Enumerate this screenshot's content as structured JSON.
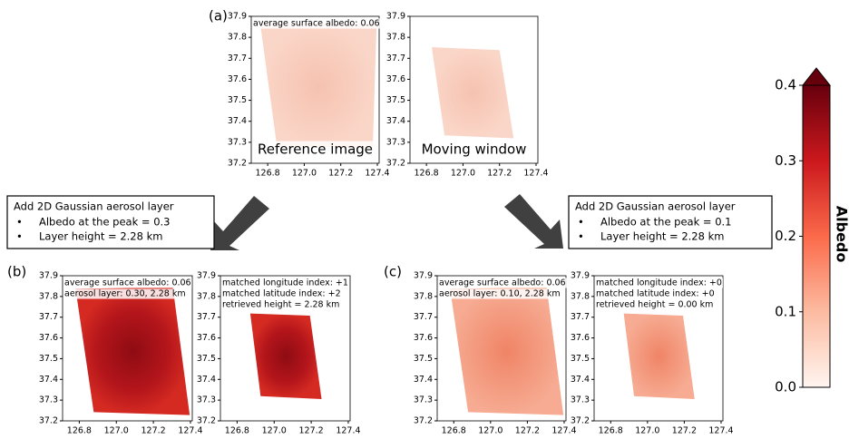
{
  "panel_labels": [
    "(a)",
    "(b)",
    "(c)"
  ],
  "axes": [
    {
      "xlim": [
        126.71,
        127.41
      ],
      "ylim": [
        37.2,
        37.9
      ],
      "xticks": [
        126.8,
        {
          "value": 127,
          "label": "127.0"
        },
        127.2,
        127.4
      ],
      "yticks": [
        37.2,
        37.3,
        37.4,
        37.5,
        37.6,
        37.7,
        37.8,
        37.9
      ],
      "annotations": [
        "average surface albedo: 0.06"
      ],
      "caption": "Reference image"
    },
    {
      "xlim": [
        126.71,
        127.41
      ],
      "ylim": [
        37.2,
        37.9
      ],
      "xticks": [
        126.8,
        {
          "value": 127,
          "label": "127.0"
        },
        127.2,
        127.4
      ],
      "yticks": [
        37.2,
        37.3,
        37.4,
        37.5,
        37.6,
        37.7,
        37.8,
        37.9
      ],
      "caption": "Moving window"
    },
    {
      "xlim": [
        126.71,
        127.41
      ],
      "ylim": [
        37.2,
        37.9
      ],
      "xticks": [
        126.8,
        {
          "value": 127,
          "label": "127.0"
        },
        127.2,
        127.4
      ],
      "yticks": [
        37.2,
        37.3,
        37.4,
        37.5,
        37.6,
        37.7,
        37.8,
        37.9
      ],
      "annotations": [
        "average surface albedo: 0.06",
        "aerosol layer: 0.30, 2.28 km"
      ]
    },
    {
      "xlim": [
        126.71,
        127.41
      ],
      "ylim": [
        37.2,
        37.9
      ],
      "xticks": [
        126.8,
        {
          "value": 127,
          "label": "127.0"
        },
        127.2,
        127.4
      ],
      "yticks": [
        37.2,
        37.3,
        37.4,
        37.5,
        37.6,
        37.7,
        37.8,
        37.9
      ],
      "annotations": [
        "matched longitude index: +1",
        "matched latitude index: +2",
        "retrieved height = 2.28 km"
      ]
    },
    {
      "xlim": [
        126.71,
        127.41
      ],
      "ylim": [
        37.2,
        37.9
      ],
      "xticks": [
        126.8,
        {
          "value": 127,
          "label": "127.0"
        },
        127.2,
        127.4
      ],
      "yticks": [
        37.2,
        37.3,
        37.4,
        37.5,
        37.6,
        37.7,
        37.8,
        37.9
      ],
      "annotations": [
        "average surface albedo: 0.06",
        "aerosol layer: 0.10, 2.28 km"
      ]
    },
    {
      "xlim": [
        126.71,
        127.41
      ],
      "ylim": [
        37.2,
        37.9
      ],
      "xticks": [
        126.8,
        {
          "value": 127,
          "label": "127.0"
        },
        127.2,
        127.4
      ],
      "yticks": [
        37.2,
        37.3,
        37.4,
        37.5,
        37.6,
        37.7,
        37.8,
        37.9
      ],
      "annotations": [
        "matched longitude index: +0",
        "matched latitude index: +0",
        "retrieved height = 0.00 km"
      ]
    }
  ],
  "boxes": [
    {
      "title": "Add 2D Gaussian aerosol layer",
      "items": [
        "Albedo at the peak = 0.3",
        "Layer height = 2.28 km"
      ]
    },
    {
      "title": "Add 2D Gaussian aerosol layer",
      "items": [
        "Albedo at the peak = 0.1",
        "Layer height = 2.28 km"
      ]
    }
  ],
  "colorbar": {
    "label": "Albedo",
    "lim": [
      0,
      0.4
    ],
    "ticks": [
      {
        "value": 0,
        "label": "0.0"
      },
      0.1,
      0.2,
      0.3,
      0.4
    ]
  }
}
